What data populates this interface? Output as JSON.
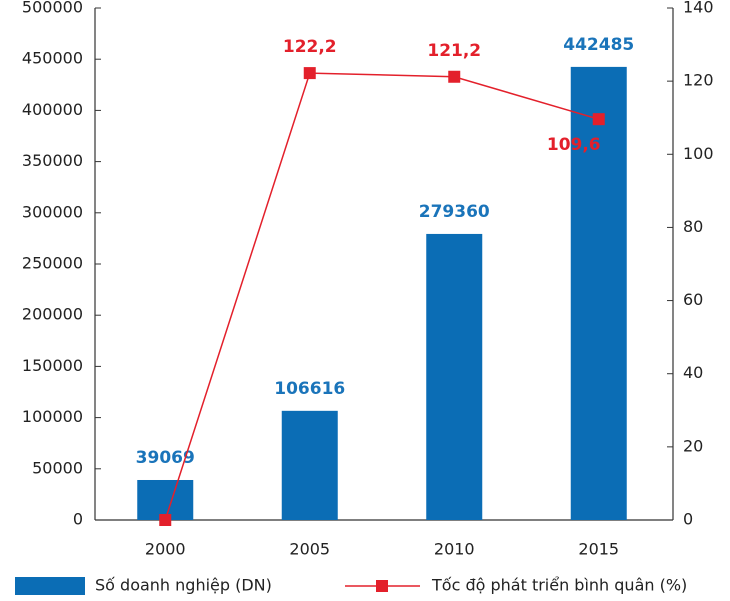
{
  "chart_data": {
    "type": "bar",
    "categories": [
      "2000",
      "2005",
      "2010",
      "2015"
    ],
    "series": [
      {
        "name": "Số doanh nghiệp (DN)",
        "type": "bar",
        "color": "#0b6db5",
        "label_color": "#1a74ba",
        "values": [
          39069,
          106616,
          279360,
          442485
        ]
      },
      {
        "name": "Tốc độ phát triển bình quân (%)",
        "type": "line",
        "color": "#e3202b",
        "axis": "y2",
        "values": [
          0,
          122.2,
          121.2,
          109.6
        ],
        "value_labels": [
          null,
          "122,2",
          "121,2",
          "109,6"
        ]
      }
    ],
    "ylim": [
      0,
      500000
    ],
    "yticks": [
      0,
      50000,
      100000,
      150000,
      200000,
      250000,
      300000,
      350000,
      400000,
      450000,
      500000
    ],
    "y2lim": [
      0,
      140
    ],
    "y2ticks": [
      0,
      20,
      40,
      60,
      80,
      100,
      120,
      140
    ]
  }
}
